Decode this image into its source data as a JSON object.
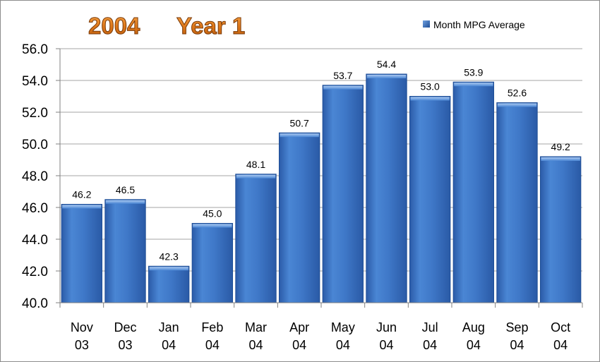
{
  "chart_data": {
    "type": "bar",
    "title_parts": [
      "2004",
      "Year 1"
    ],
    "categories": [
      [
        "Nov",
        "03"
      ],
      [
        "Dec",
        "03"
      ],
      [
        "Jan",
        "04"
      ],
      [
        "Feb",
        "04"
      ],
      [
        "Mar",
        "04"
      ],
      [
        "Apr",
        "04"
      ],
      [
        "May",
        "04"
      ],
      [
        "Jun",
        "04"
      ],
      [
        "Jul",
        "04"
      ],
      [
        "Aug",
        "04"
      ],
      [
        "Sep",
        "04"
      ],
      [
        "Oct",
        "04"
      ]
    ],
    "series": [
      {
        "name": "Month MPG Average",
        "values": [
          46.2,
          46.5,
          42.3,
          45.0,
          48.1,
          50.7,
          53.7,
          54.4,
          53.0,
          53.9,
          52.6,
          49.2
        ],
        "labels": [
          "46.2",
          "46.5",
          "42.3",
          "45.0",
          "48.1",
          "50.7",
          "53.7",
          "54.4",
          "53.0",
          "53.9",
          "52.6",
          "49.2"
        ]
      }
    ],
    "ylim": [
      40.0,
      56.0
    ],
    "yticks": [
      40.0,
      42.0,
      44.0,
      46.0,
      48.0,
      50.0,
      52.0,
      54.0,
      56.0
    ],
    "ytick_labels": [
      "40.0",
      "42.0",
      "44.0",
      "46.0",
      "48.0",
      "50.0",
      "52.0",
      "54.0",
      "56.0"
    ],
    "grid": true,
    "legend_position": "top-right",
    "colors": {
      "bar": "#3f78c8",
      "bar_dark": "#1f4e96",
      "title_fill": "#e07a1c",
      "title_outline": "#7a3a08",
      "grid": "#a6a6a6"
    }
  }
}
